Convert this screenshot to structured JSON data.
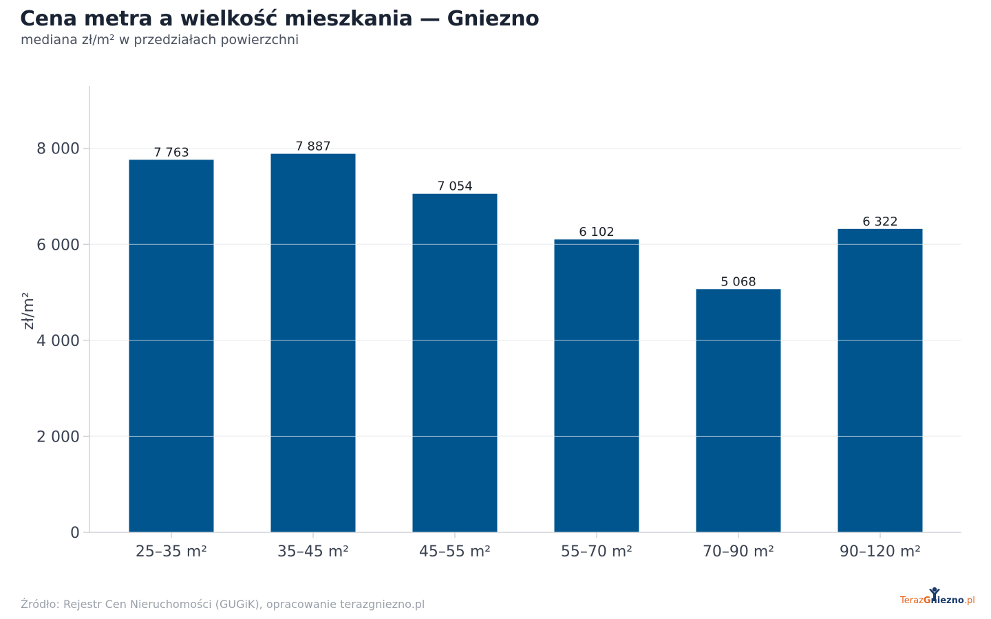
{
  "header": {
    "title": "Cena metra a wielkość mieszkania — Gniezno",
    "subtitle": "mediana zł/m² w przedziałach powierzchni"
  },
  "footer": {
    "source": "Źródło: Rejestr Cen Nieruchomości (GUGiK), opracowanie terazgniezno.pl"
  },
  "logo": {
    "part1": "Teraz",
    "part2": "G",
    "part3": "niezno",
    "part4": ".pl",
    "icon": "person-raised-arms-icon"
  },
  "colors": {
    "bar": "#00558e",
    "grid": "#e3e5e9",
    "axis": "#cfd3d9",
    "tick_text": "#3a4250",
    "label_text": "#1a1f28",
    "logo_orange": "#e8621c",
    "logo_navy": "#1a3a6b"
  },
  "chart_data": {
    "type": "bar",
    "title": "Cena metra a wielkość mieszkania — Gniezno",
    "subtitle": "mediana zł/m² w przedziałach powierzchni",
    "xlabel": "",
    "ylabel": "zł/m²",
    "categories": [
      "25–35 m²",
      "35–45 m²",
      "45–55 m²",
      "55–70 m²",
      "70–90 m²",
      "90–120 m²"
    ],
    "values": [
      7763,
      7887,
      7054,
      6102,
      5068,
      6322
    ],
    "value_labels": [
      "7 763",
      "7 887",
      "7 054",
      "6 102",
      "5 068",
      "6 322"
    ],
    "ylim": [
      0,
      9300
    ],
    "yticks": [
      0,
      2000,
      4000,
      6000,
      8000
    ],
    "ytick_labels": [
      "0",
      "2 000",
      "4 000",
      "6 000",
      "8 000"
    ],
    "grid": true,
    "legend": "none"
  }
}
